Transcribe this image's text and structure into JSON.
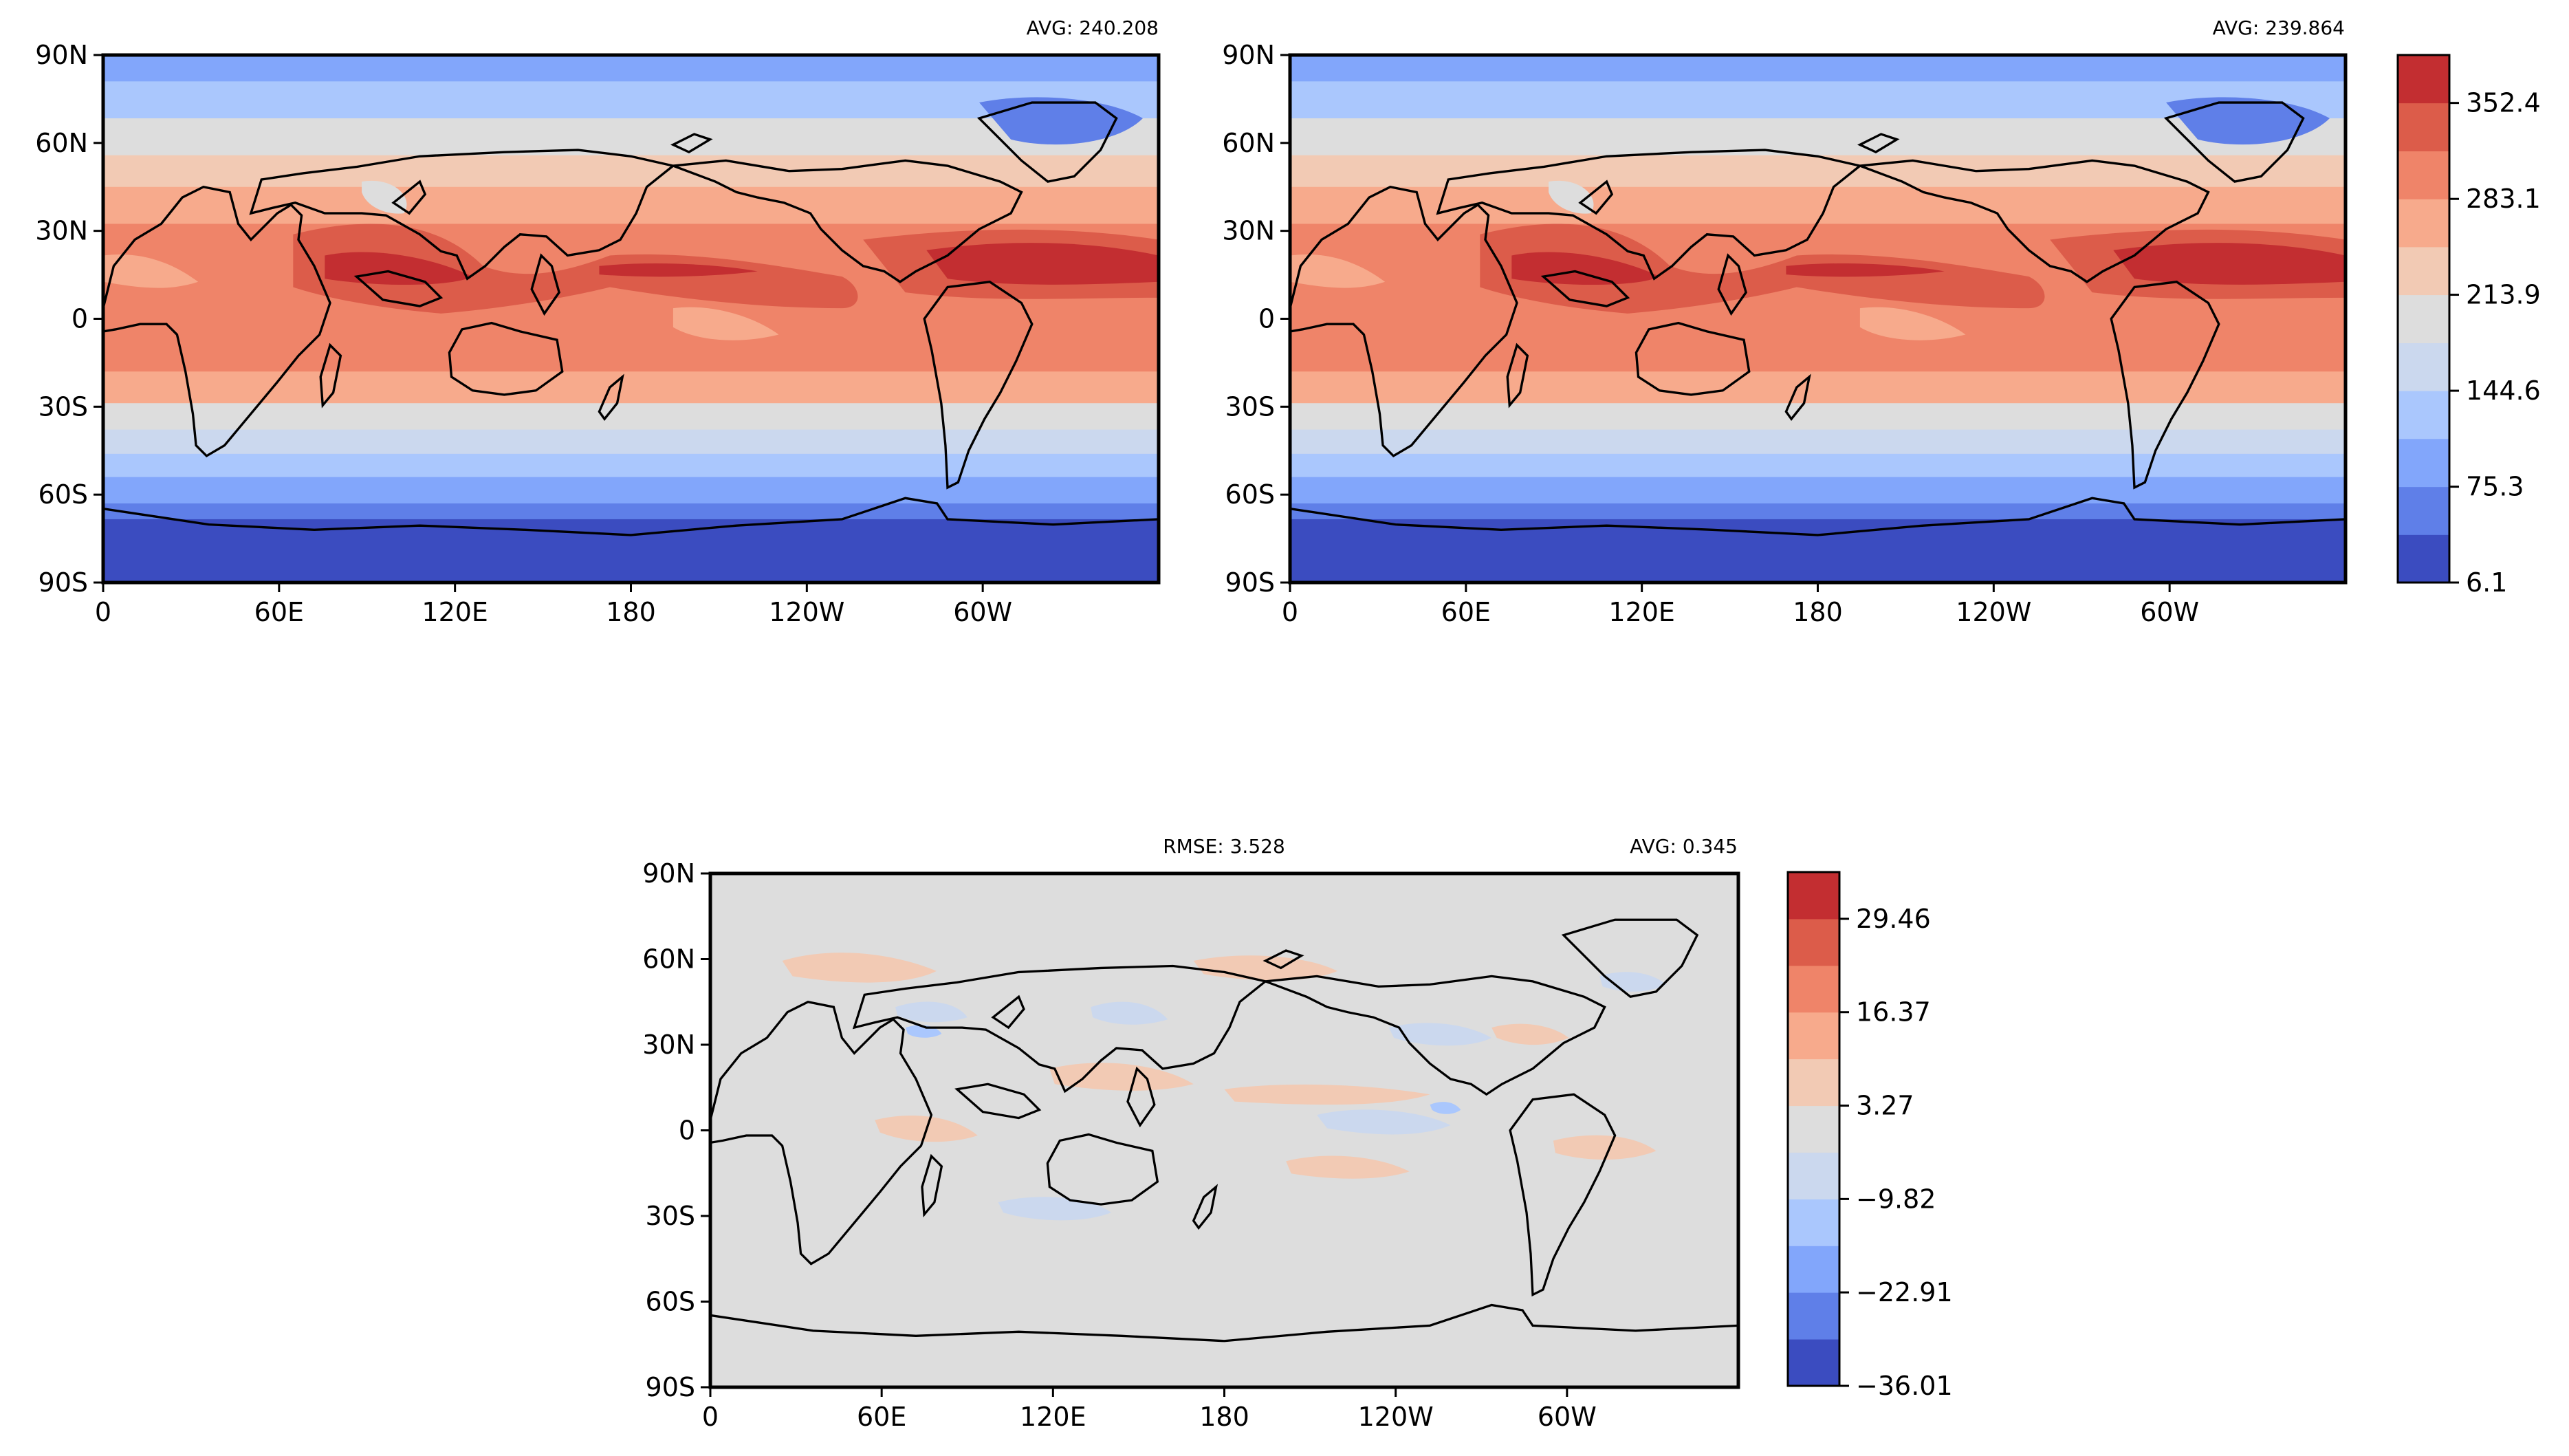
{
  "colors": {
    "coolwarm": [
      "#3b4cc0",
      "#5f7fe8",
      "#82a6fb",
      "#aac7fd",
      "#cbd8ee",
      "#dddddd",
      "#f2cab4",
      "#f7aa8c",
      "#ef8469",
      "#dc5c4a",
      "#c32e31"
    ],
    "coast": "#000000",
    "frame": "#000000"
  },
  "icons": {
    "map_background": "filled-contour-field",
    "coastline": "coastline-outline"
  },
  "chart_data": [
    {
      "type": "heatmap",
      "panel": "test",
      "title_left": "",
      "title_right": "AVG: 240.208",
      "projection": "PlateCarree, central_longitude=180",
      "xlim": [
        0,
        360
      ],
      "ylim": [
        -90,
        90
      ],
      "xticks": [
        "0",
        "60E",
        "120E",
        "180",
        "120W",
        "60W"
      ],
      "yticks": [
        "90N",
        "60N",
        "30N",
        "0",
        "30S",
        "60S",
        "90S"
      ],
      "levels": [
        6.1,
        40.7,
        75.3,
        110.0,
        144.6,
        179.2,
        213.9,
        248.5,
        283.1,
        317.7,
        352.4,
        387.0
      ],
      "avg": 240.208
    },
    {
      "type": "heatmap",
      "panel": "reference",
      "title_left": "",
      "title_right": "AVG: 239.864",
      "projection": "PlateCarree, central_longitude=180",
      "xlim": [
        0,
        360
      ],
      "ylim": [
        -90,
        90
      ],
      "xticks": [
        "0",
        "60E",
        "120E",
        "180",
        "120W",
        "60W"
      ],
      "yticks": [
        "90N",
        "60N",
        "30N",
        "0",
        "30S",
        "60S",
        "90S"
      ],
      "levels": [
        6.1,
        40.7,
        75.3,
        110.0,
        144.6,
        179.2,
        213.9,
        248.5,
        283.1,
        317.7,
        352.4,
        387.0
      ],
      "avg": 239.864,
      "colorbar": {
        "ticks": [
          "352.4",
          "283.1",
          "213.9",
          "144.6",
          "75.3",
          "6.1"
        ]
      }
    },
    {
      "type": "heatmap",
      "panel": "difference",
      "title_left": "RMSE: 3.528",
      "title_right": "AVG: 0.345",
      "projection": "PlateCarree, central_longitude=180",
      "xlim": [
        0,
        360
      ],
      "ylim": [
        -90,
        90
      ],
      "xticks": [
        "0",
        "60E",
        "120E",
        "180",
        "120W",
        "60W"
      ],
      "yticks": [
        "90N",
        "60N",
        "30N",
        "0",
        "30S",
        "60S",
        "90S"
      ],
      "levels": [
        -36.01,
        -29.46,
        -22.91,
        -16.37,
        -9.82,
        -3.27,
        3.27,
        9.82,
        16.37,
        22.91,
        29.46,
        36.01
      ],
      "rmse": 3.528,
      "avg": 0.345,
      "colorbar": {
        "ticks": [
          "29.46",
          "16.37",
          "3.27",
          "−9.82",
          "−22.91",
          "−36.01"
        ]
      }
    }
  ]
}
